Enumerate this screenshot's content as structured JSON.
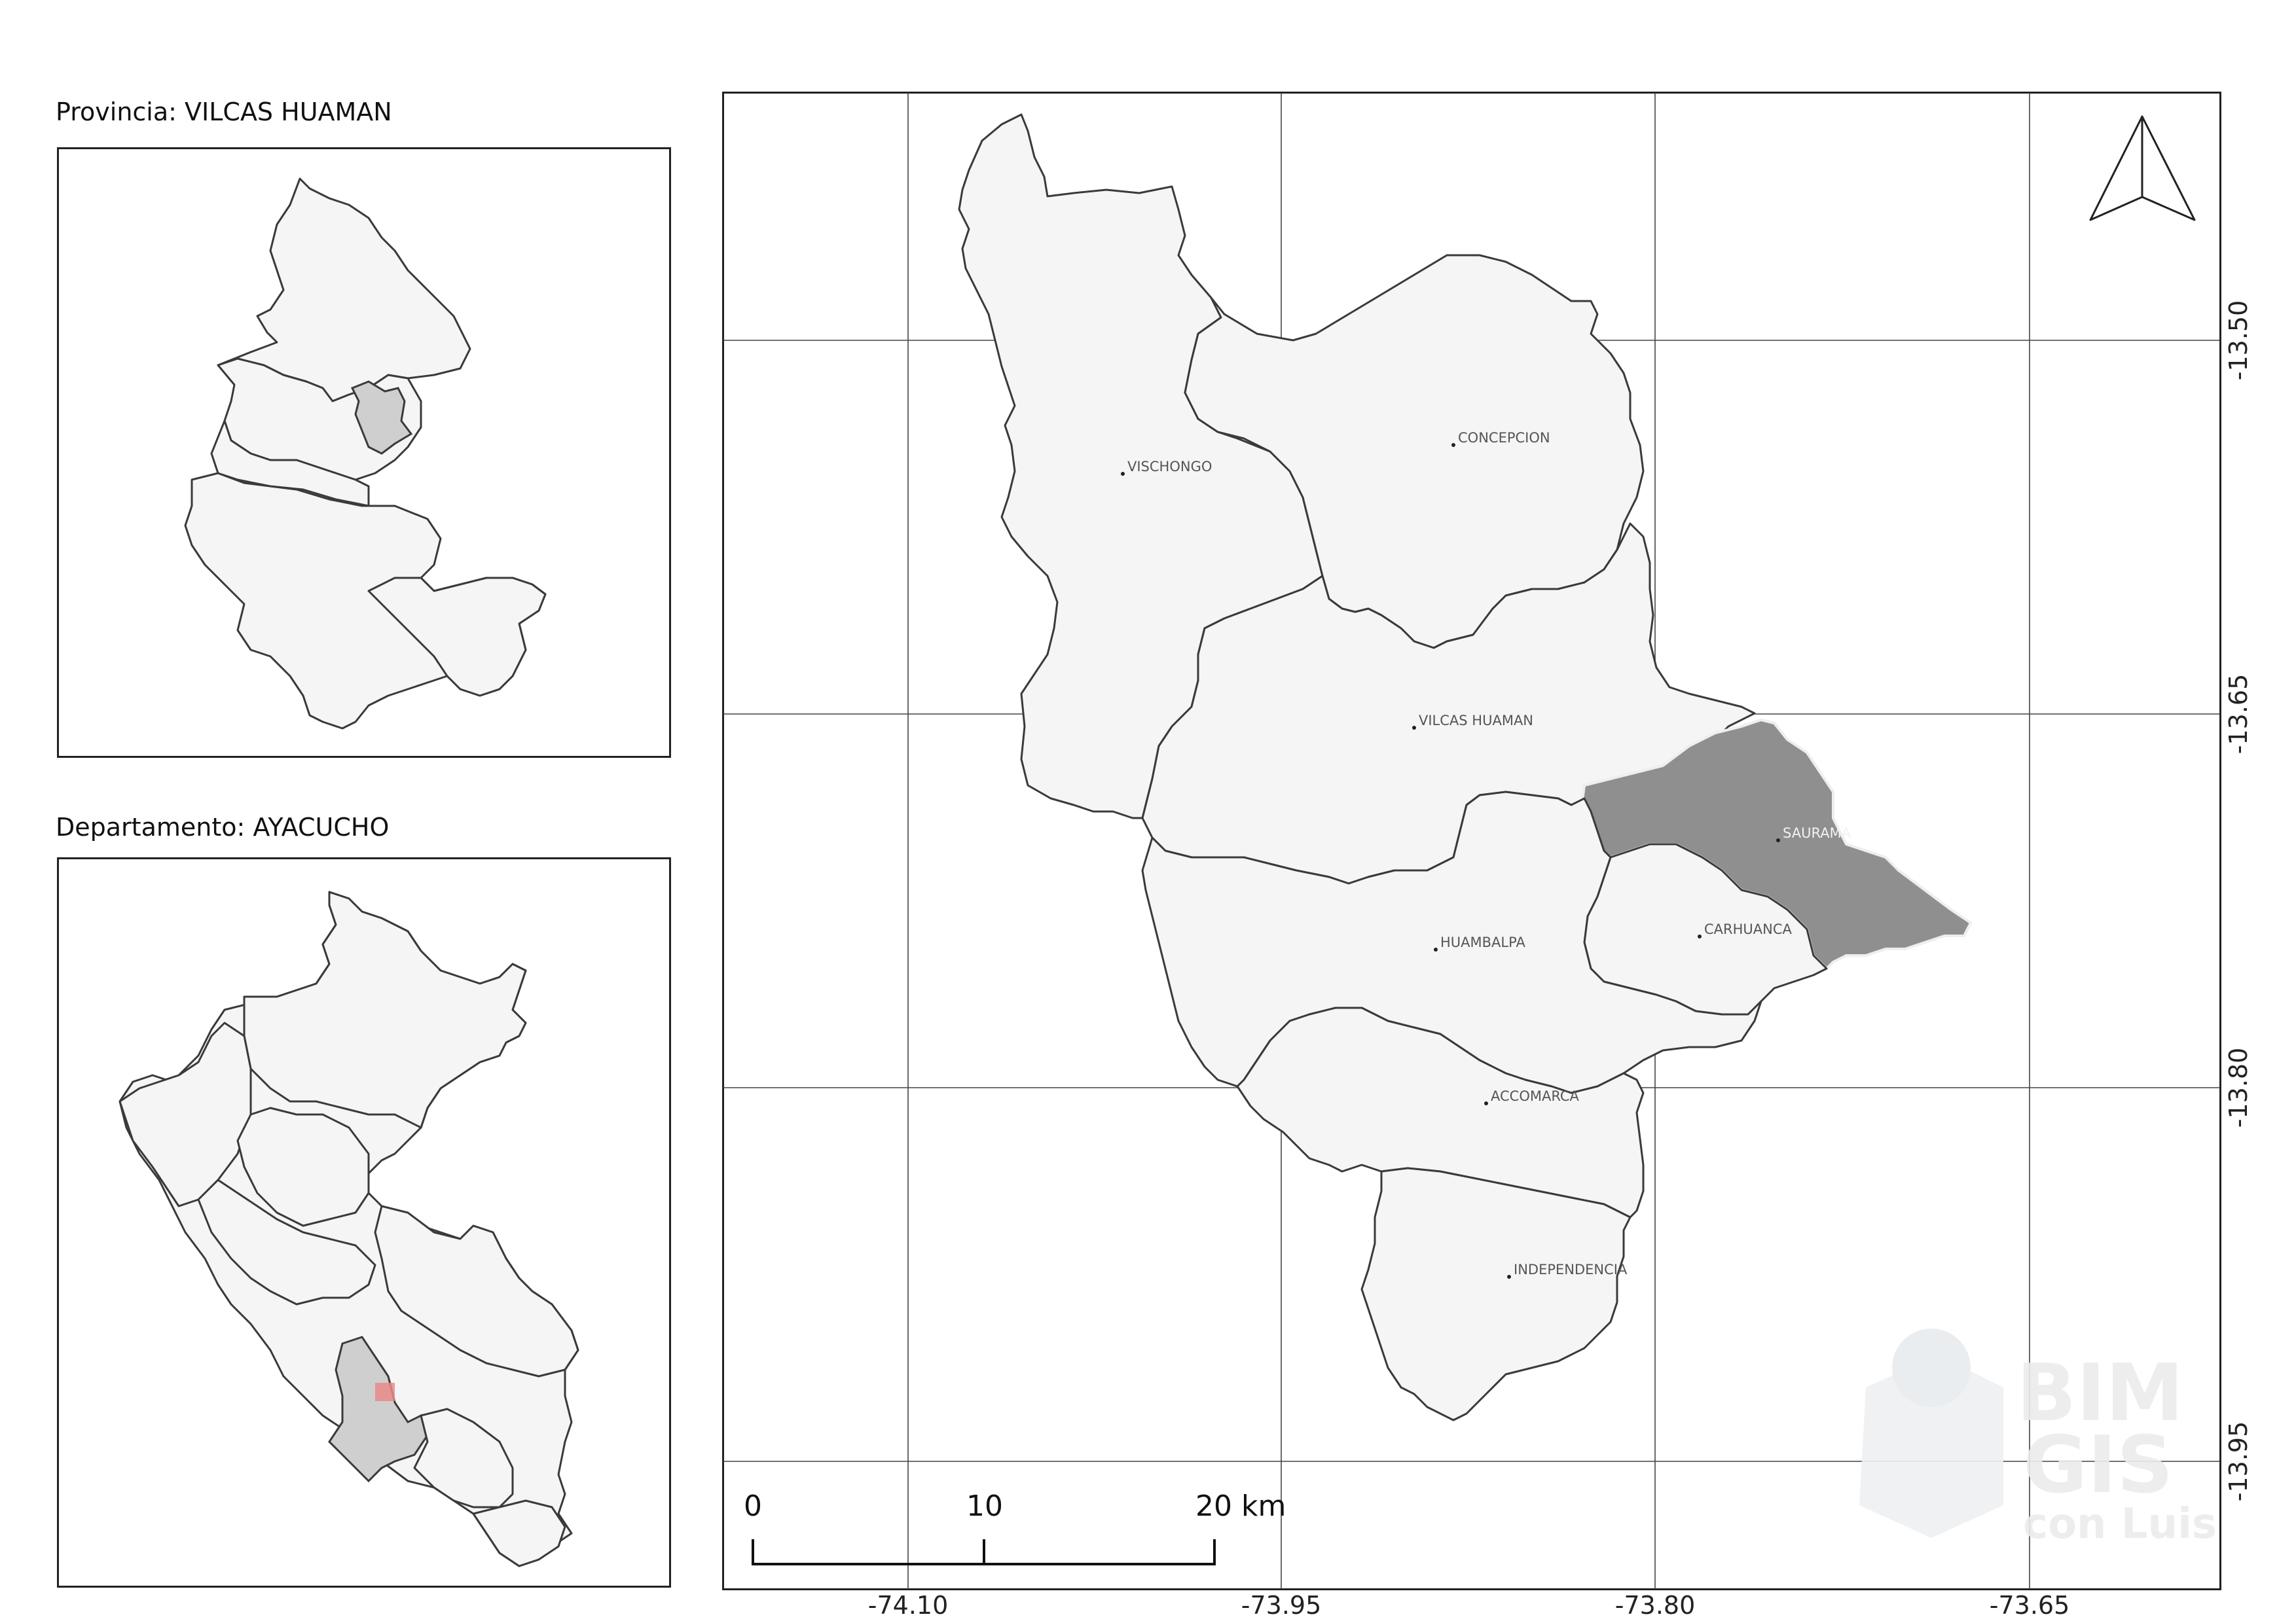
{
  "inset_province": {
    "title": "Provincia: VILCAS HUAMAN"
  },
  "inset_department": {
    "title": "Departamento: AYACUCHO"
  },
  "main_map": {
    "x_ticks": [
      "-74.10",
      "-73.95",
      "-73.80",
      "-73.65"
    ],
    "y_ticks": [
      "-13.50",
      "-13.65",
      "-13.80",
      "-13.95"
    ],
    "places": [
      {
        "name": "VISCHONGO",
        "selected": false
      },
      {
        "name": "CONCEPCION",
        "selected": false
      },
      {
        "name": "VILCAS HUAMAN",
        "selected": false
      },
      {
        "name": "SAURAMA",
        "selected": true
      },
      {
        "name": "CARHUANCA",
        "selected": false
      },
      {
        "name": "HUAMBALPA",
        "selected": false
      },
      {
        "name": "ACCOMARCA",
        "selected": false
      },
      {
        "name": "INDEPENDENCIA",
        "selected": false
      }
    ],
    "scale_bar": {
      "labels": [
        "0",
        "10",
        "20 km"
      ]
    },
    "north_arrow": "north-arrow-icon"
  },
  "watermark": {
    "line1": "BIM",
    "line2": "GIS",
    "line3": "con Luis"
  },
  "colors": {
    "region_fill": "#f5f5f5",
    "selected_fill": "#8f8f8f",
    "inset_selected_fill": "#cfcfcf",
    "extent_marker": "#e88a8a"
  }
}
